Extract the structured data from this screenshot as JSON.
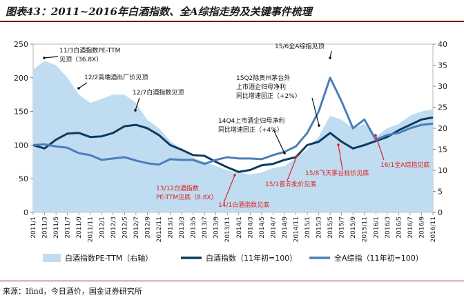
{
  "figure": {
    "title": "图表43：2011~2016年白酒指数、全A综指走势及关键事件梳理",
    "source": "来源：Ifind，今日酒价，国金证券研究所"
  },
  "chart_data": {
    "type": "line",
    "x": [
      "2011/1",
      "2011/3",
      "2011/5",
      "2011/7",
      "2011/9",
      "2011/11",
      "2012/1",
      "2012/3",
      "2012/5",
      "2012/7",
      "2012/9",
      "2012/11",
      "2013/1",
      "2013/3",
      "2013/5",
      "2013/7",
      "2013/9",
      "2013/11",
      "2014/1",
      "2014/3",
      "2014/5",
      "2014/7",
      "2014/9",
      "2014/11",
      "2015/1",
      "2015/3",
      "2015/5",
      "2015/7",
      "2015/9",
      "2015/11",
      "2016/1",
      "2016/3",
      "2016/5",
      "2016/7",
      "2016/9",
      "2016/11"
    ],
    "y_left_lim": [
      0,
      250
    ],
    "y_left_ticks": [
      0,
      50,
      100,
      150,
      200,
      250
    ],
    "y_right_lim": [
      0,
      40
    ],
    "y_right_ticks": [
      0,
      5,
      10,
      15,
      20,
      25,
      30,
      35,
      40
    ],
    "series": [
      {
        "name": "白酒指数PE-TTM（右轴）",
        "axis": "right",
        "kind": "area",
        "color": "#bfdcf0",
        "values": [
          34,
          36,
          35,
          32,
          28,
          26,
          27,
          28,
          28,
          26,
          22,
          20,
          17,
          15,
          13,
          12,
          11,
          10,
          9.5,
          9,
          9.5,
          10.5,
          11,
          13,
          15,
          18,
          23,
          22,
          20,
          21,
          18,
          20,
          21,
          23,
          24,
          24.5
        ]
      },
      {
        "name": "白酒指数（11年初=100）",
        "axis": "left",
        "kind": "line",
        "color": "#0d3b5e",
        "values": [
          100,
          95,
          108,
          117,
          118,
          112,
          113,
          118,
          128,
          130,
          125,
          115,
          100,
          93,
          85,
          84,
          75,
          67,
          60,
          63,
          70,
          72,
          78,
          82,
          100,
          105,
          118,
          105,
          95,
          100,
          106,
          112,
          122,
          130,
          138,
          141
        ]
      },
      {
        "name": "全A综指（11年初=100）",
        "axis": "left",
        "kind": "line",
        "color": "#4a7ebb",
        "values": [
          100,
          101,
          98,
          96,
          88,
          85,
          78,
          80,
          82,
          77,
          73,
          71,
          79,
          78,
          78,
          72,
          78,
          82,
          80,
          80,
          79,
          85,
          90,
          98,
          118,
          150,
          200,
          165,
          125,
          138,
          108,
          115,
          118,
          125,
          130,
          132
        ]
      }
    ],
    "annotations": [
      {
        "lines": [
          "11/3白酒指数PE-TTM",
          "见顶（36.8X）"
        ],
        "color": "#111111"
      },
      {
        "lines": [
          "12/2高端酒出厂价见顶"
        ],
        "color": "#111111"
      },
      {
        "lines": [
          "12/7白酒指数见顶"
        ],
        "color": "#111111"
      },
      {
        "lines": [
          "13/12白酒指数",
          "PE-TTM见底（8.8X）"
        ],
        "color": "#e02020"
      },
      {
        "lines": [
          "14/1白酒指数见底"
        ],
        "color": "#e02020"
      },
      {
        "lines": [
          "14Q4上市酒企归母净利",
          "同比增速回正（+4%）"
        ],
        "color": "#111111"
      },
      {
        "lines": [
          "15/1普五批价见底"
        ],
        "color": "#e02020"
      },
      {
        "lines": [
          "15Q2除贵州茅台外",
          "上市酒企归母净利",
          "同比增速回正（+2%）"
        ],
        "color": "#111111"
      },
      {
        "lines": [
          "15/6全A综指见顶"
        ],
        "color": "#111111"
      },
      {
        "lines": [
          "15/8飞天茅台批价见底"
        ],
        "color": "#e02020"
      },
      {
        "lines": [
          "16/1全A综指见底"
        ],
        "color": "#e02020"
      }
    ]
  }
}
